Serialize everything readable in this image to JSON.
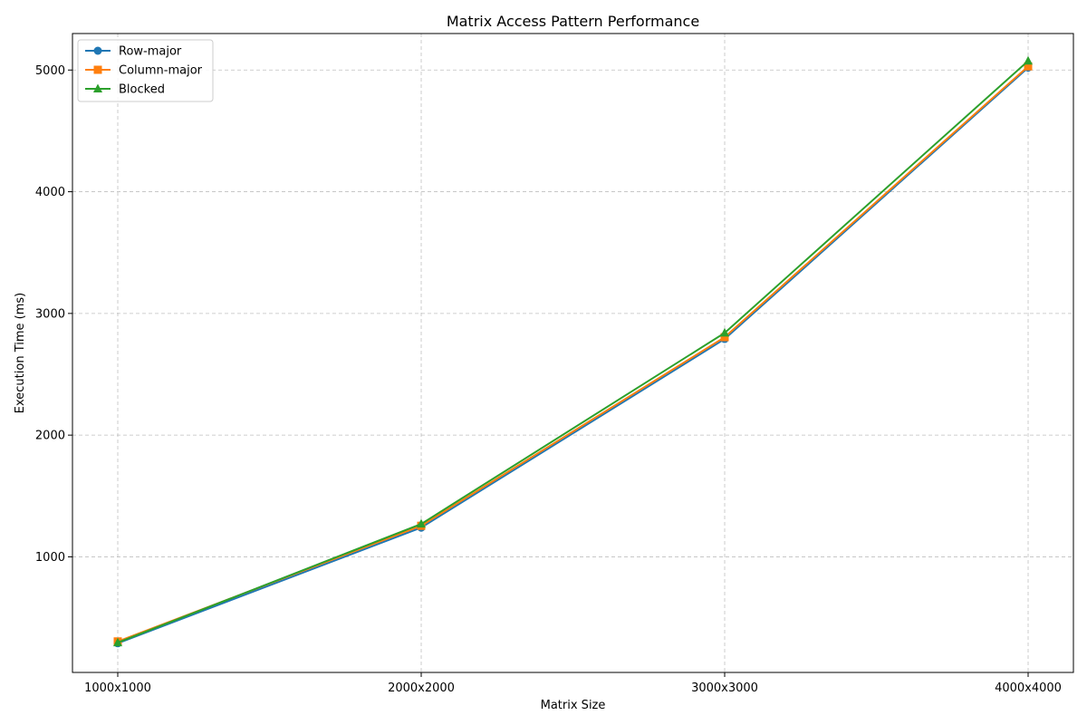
{
  "chart_data": {
    "type": "line",
    "title": "Matrix Access Pattern Performance",
    "xlabel": "Matrix Size",
    "ylabel": "Execution Time (ms)",
    "categories": [
      "1000x1000",
      "2000x2000",
      "3000x3000",
      "4000x4000"
    ],
    "y_ticks": [
      1000,
      2000,
      3000,
      4000,
      5000
    ],
    "ylim": [
      50,
      5300
    ],
    "grid": true,
    "grid_style": "dashed",
    "legend_position": "upper-left",
    "series": [
      {
        "name": "Row-major",
        "values": [
          290,
          1240,
          2790,
          5020
        ],
        "color": "#1f77b4",
        "marker": "circle"
      },
      {
        "name": "Column-major",
        "values": [
          305,
          1255,
          2805,
          5030
        ],
        "color": "#ff7f0e",
        "marker": "square"
      },
      {
        "name": "Blocked",
        "values": [
          295,
          1270,
          2840,
          5075
        ],
        "color": "#2ca02c",
        "marker": "triangle"
      }
    ]
  }
}
